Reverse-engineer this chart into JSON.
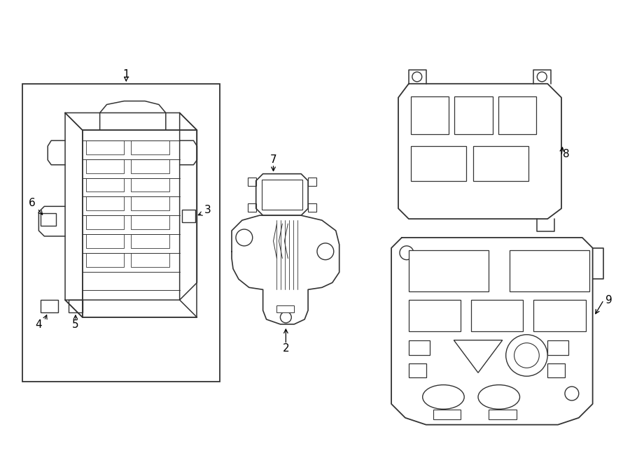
{
  "bg_color": "#ffffff",
  "line_color": "#333333",
  "fig_width": 9.0,
  "fig_height": 6.61,
  "dpi": 100
}
